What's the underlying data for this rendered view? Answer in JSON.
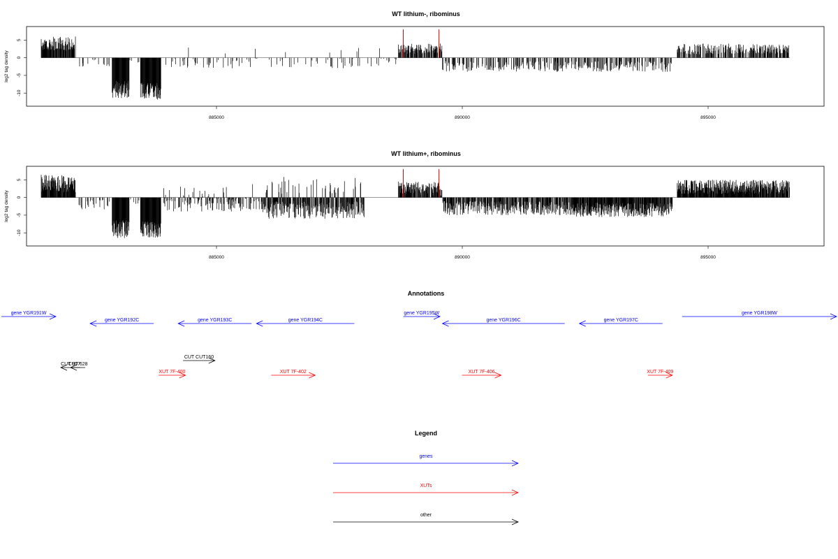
{
  "colors": {
    "genes": "#0000ff",
    "xuts": "#ff0000",
    "other": "#000000",
    "axis": "#000000",
    "spike": "#dd0000"
  },
  "chart_data": [
    {
      "type": "bar",
      "title": "WT lithium-, ribominus",
      "ylabel": "log2 tag density",
      "xlim": [
        881200,
        897500
      ],
      "ylim": [
        -13,
        8.5
      ],
      "yticks": [
        5,
        0,
        -5,
        -10
      ],
      "ytick_labels": [
        "5",
        "0",
        "-5",
        "-10"
      ],
      "xticks": [
        885000,
        890000,
        895000
      ],
      "xtick_labels": [
        "885000",
        "890000",
        "895000"
      ],
      "grid": false,
      "red_marks": [
        {
          "x": 888900,
          "y": 8
        },
        {
          "x": 889630,
          "y": 8
        }
      ],
      "profile": [
        {
          "x": [
            881500,
            882200
          ],
          "level": 4.0,
          "var": 2.0,
          "density": 0.9,
          "sign": 1
        },
        {
          "x": [
            882250,
            882900
          ],
          "level": -1.5,
          "var": 1.0,
          "density": 0.15,
          "sign": -1
        },
        {
          "x": [
            882950,
            883300
          ],
          "level": -9.0,
          "var": 2.5,
          "density": 1.0,
          "sign": -1
        },
        {
          "x": [
            883300,
            883500
          ],
          "level": -1.0,
          "var": 1.0,
          "density": 0.1,
          "sign": -1
        },
        {
          "x": [
            883530,
            883950
          ],
          "level": -9.5,
          "var": 2.5,
          "density": 1.0,
          "sign": -1
        },
        {
          "x": [
            884000,
            888800
          ],
          "level": -1.5,
          "var": 1.5,
          "density": 0.12,
          "sign": 0
        },
        {
          "x": [
            888800,
            889700
          ],
          "level": 2.5,
          "var": 1.5,
          "density": 0.7,
          "sign": 1
        },
        {
          "x": [
            889700,
            894400
          ],
          "level": -2.5,
          "var": 1.5,
          "density": 0.35,
          "sign": -1
        },
        {
          "x": [
            894500,
            896800
          ],
          "level": 2.5,
          "var": 1.5,
          "density": 0.6,
          "sign": 1
        }
      ]
    },
    {
      "type": "bar",
      "title": "WT lithium+, ribominus",
      "ylabel": "log2 tag density",
      "xlim": [
        881200,
        897500
      ],
      "ylim": [
        -13,
        8.5
      ],
      "yticks": [
        5,
        0,
        -5,
        -10
      ],
      "ytick_labels": [
        "5",
        "0",
        "-5",
        "-10"
      ],
      "xticks": [
        885000,
        890000,
        895000
      ],
      "xtick_labels": [
        "885000",
        "890000",
        "895000"
      ],
      "grid": false,
      "red_marks": [
        {
          "x": 888900,
          "y": 8
        },
        {
          "x": 889630,
          "y": 8
        }
      ],
      "profile": [
        {
          "x": [
            881500,
            882200
          ],
          "level": 4.0,
          "var": 2.5,
          "density": 0.95,
          "sign": 1
        },
        {
          "x": [
            882250,
            882900
          ],
          "level": -2.0,
          "var": 1.5,
          "density": 0.3,
          "sign": -1
        },
        {
          "x": [
            882950,
            883300
          ],
          "level": -9.0,
          "var": 2.5,
          "density": 1.0,
          "sign": -1
        },
        {
          "x": [
            883300,
            883500
          ],
          "level": -1.5,
          "var": 1.0,
          "density": 0.2,
          "sign": -1
        },
        {
          "x": [
            883530,
            883950
          ],
          "level": -9.0,
          "var": 2.5,
          "density": 1.0,
          "sign": -1
        },
        {
          "x": [
            884000,
            886000
          ],
          "level": -2.0,
          "var": 2.0,
          "density": 0.4,
          "sign": 0
        },
        {
          "x": [
            886000,
            888100
          ],
          "level": -3.5,
          "var": 2.5,
          "density": 0.8,
          "sign": 0
        },
        {
          "x": [
            888800,
            889700
          ],
          "level": 2.5,
          "var": 2.0,
          "density": 0.8,
          "sign": 1
        },
        {
          "x": [
            889700,
            892300
          ],
          "level": -3.0,
          "var": 2.0,
          "density": 0.7,
          "sign": -1
        },
        {
          "x": [
            892300,
            894400
          ],
          "level": -3.5,
          "var": 2.0,
          "density": 0.85,
          "sign": -1
        },
        {
          "x": [
            894500,
            896800
          ],
          "level": 3.0,
          "var": 2.0,
          "density": 0.95,
          "sign": 1
        }
      ]
    }
  ],
  "annotations": {
    "title": "Annotations",
    "genes": [
      {
        "label": "gene YGR191W",
        "x": 880600,
        "x2": 881800,
        "row": 0,
        "dir": "right"
      },
      {
        "label": "gene YGR192C",
        "x": 882500,
        "x2": 883800,
        "row": 1,
        "dir": "left"
      },
      {
        "label": "gene YGR193C",
        "x": 884300,
        "x2": 885800,
        "row": 1,
        "dir": "left"
      },
      {
        "label": "gene YGR194C",
        "x": 885900,
        "x2": 887900,
        "row": 1,
        "dir": "left"
      },
      {
        "label": "gene YGR195W",
        "x": 888900,
        "x2": 889650,
        "row": 0,
        "dir": "right"
      },
      {
        "label": "gene YGR196C",
        "x": 889700,
        "x2": 892200,
        "row": 1,
        "dir": "left"
      },
      {
        "label": "gene YGR197C",
        "x": 892500,
        "x2": 894200,
        "row": 1,
        "dir": "left"
      },
      {
        "label": "gene YGR198W",
        "x": 894600,
        "x2": 897900,
        "row": 0,
        "dir": "right"
      }
    ],
    "xuts": [
      {
        "label": "XUT 7F-400",
        "x": 883900,
        "x2": 884450,
        "dir": "right"
      },
      {
        "label": "XUT 7F-402",
        "x": 886200,
        "x2": 887100,
        "dir": "right"
      },
      {
        "label": "XUT 7F-406",
        "x": 890100,
        "x2": 890900,
        "dir": "right"
      },
      {
        "label": "XUT 7F-409",
        "x": 893900,
        "x2": 894400,
        "dir": "right"
      }
    ],
    "other": [
      {
        "label": "CUT CUT160",
        "x": 884400,
        "x2": 885050,
        "dir": "right",
        "row": 0
      },
      {
        "label": "CUT 907",
        "x": 881900,
        "x2": 882300,
        "dir": "left",
        "row": 1
      },
      {
        "label": "CUT 628",
        "x": 882100,
        "x2": 882400,
        "dir": "left",
        "row": 1
      }
    ]
  },
  "legend": {
    "title": "Legend",
    "items": [
      {
        "label": "genes",
        "color": "#0000ff"
      },
      {
        "label": "XUTs",
        "color": "#ff0000"
      },
      {
        "label": "other",
        "color": "#000000"
      }
    ]
  }
}
